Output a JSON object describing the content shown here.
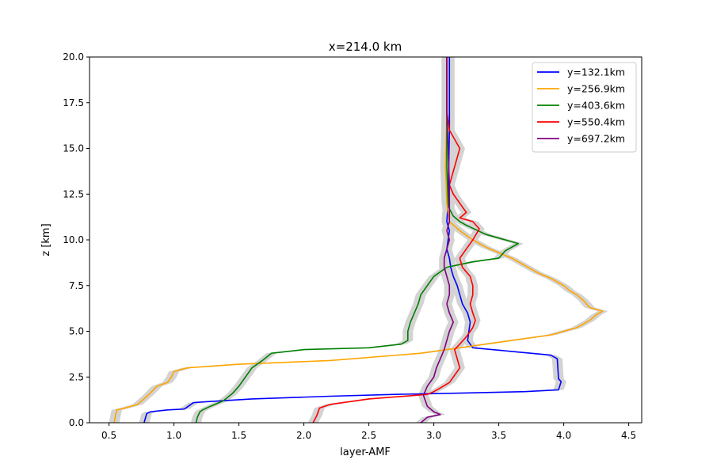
{
  "chart_data": {
    "type": "line",
    "title": "x=214.0 km",
    "xlabel": "layer-AMF",
    "ylabel": "z [km]",
    "xlim": [
      0.35,
      4.6
    ],
    "ylim": [
      0,
      20
    ],
    "xticks": [
      0.5,
      1.0,
      1.5,
      2.0,
      2.5,
      3.0,
      3.5,
      4.0,
      4.5
    ],
    "xtick_labels": [
      "0.5",
      "1.0",
      "1.5",
      "2.0",
      "2.5",
      "3.0",
      "3.5",
      "4.0",
      "4.5"
    ],
    "yticks": [
      0,
      2.5,
      5,
      7.5,
      10,
      12.5,
      15,
      17.5,
      20
    ],
    "ytick_labels": [
      "0.0",
      "2.5",
      "5.0",
      "7.5",
      "10.0",
      "12.5",
      "15.0",
      "17.5",
      "20.0"
    ],
    "grid": false,
    "legend_position": "top-right",
    "band_color": "#d3d3d3",
    "series": [
      {
        "name": "y=132.1km",
        "color": "#0000ff",
        "x": [
          0.77,
          0.79,
          0.82,
          0.95,
          1.08,
          1.12,
          1.15,
          1.25,
          1.6,
          2.2,
          2.7,
          3.2,
          3.7,
          3.96,
          3.98,
          3.96,
          3.95,
          3.9,
          3.6,
          3.3,
          3.26,
          3.27,
          3.28,
          3.26,
          3.22,
          3.2,
          3.18,
          3.15,
          3.13,
          3.12,
          3.1,
          3.11,
          3.12,
          3.1,
          3.11,
          3.12,
          3.12
        ],
        "y": [
          0,
          0.5,
          0.6,
          0.7,
          0.75,
          0.95,
          1.1,
          1.15,
          1.3,
          1.45,
          1.55,
          1.62,
          1.7,
          1.8,
          2.25,
          2.4,
          3.5,
          3.7,
          3.9,
          4.1,
          4.5,
          5.0,
          5.5,
          6.0,
          6.5,
          7.0,
          7.5,
          8.0,
          8.5,
          9.0,
          9.5,
          10.0,
          10.5,
          11.0,
          12.0,
          16.0,
          20.0
        ]
      },
      {
        "name": "y=256.9km",
        "color": "#ffa500",
        "x": [
          0.54,
          0.55,
          0.56,
          0.62,
          0.72,
          0.8,
          0.87,
          0.95,
          0.98,
          1.0,
          1.1,
          1.5,
          2.2,
          2.9,
          3.3,
          3.6,
          3.9,
          4.1,
          4.2,
          4.25,
          4.3,
          4.2,
          4.15,
          4.1,
          4.05,
          4.0,
          3.95,
          3.9,
          3.8,
          3.7,
          3.6,
          3.5,
          3.4,
          3.3,
          3.2,
          3.12,
          3.1,
          3.09,
          3.1,
          3.1
        ],
        "y": [
          0,
          0.4,
          0.7,
          0.8,
          1.0,
          1.5,
          2.0,
          2.2,
          2.5,
          2.8,
          3.0,
          3.2,
          3.4,
          3.8,
          4.2,
          4.5,
          4.8,
          5.2,
          5.6,
          5.9,
          6.1,
          6.3,
          6.7,
          7.0,
          7.2,
          7.5,
          7.7,
          7.9,
          8.2,
          8.6,
          9.0,
          9.3,
          9.6,
          10.0,
          10.5,
          11.0,
          12.0,
          14.0,
          17.0,
          20.0
        ]
      },
      {
        "name": "y=403.6km",
        "color": "#008000",
        "x": [
          1.17,
          1.18,
          1.2,
          1.22,
          1.28,
          1.38,
          1.45,
          1.5,
          1.55,
          1.6,
          1.68,
          1.75,
          2.0,
          2.5,
          2.75,
          2.8,
          2.8,
          2.82,
          2.85,
          2.88,
          2.9,
          2.95,
          3.0,
          3.1,
          3.3,
          3.5,
          3.55,
          3.65,
          3.4,
          3.25,
          3.2,
          3.15,
          3.12,
          3.11,
          3.1,
          3.1,
          3.1
        ],
        "y": [
          0,
          0.3,
          0.6,
          0.7,
          0.9,
          1.2,
          1.6,
          2.0,
          2.5,
          3.0,
          3.4,
          3.8,
          4.0,
          4.1,
          4.3,
          4.5,
          5.0,
          5.5,
          6.0,
          6.5,
          7.0,
          7.5,
          8.0,
          8.5,
          8.8,
          9.0,
          9.4,
          9.8,
          10.3,
          10.8,
          11.0,
          11.3,
          11.7,
          12.0,
          14.0,
          17.0,
          20.0
        ]
      },
      {
        "name": "y=550.4km",
        "color": "#ff0000",
        "x": [
          2.07,
          2.1,
          2.12,
          2.2,
          2.5,
          2.95,
          3.0,
          3.05,
          3.12,
          3.15,
          3.2,
          3.18,
          3.16,
          3.2,
          3.25,
          3.3,
          3.32,
          3.3,
          3.28,
          3.3,
          3.3,
          3.28,
          3.22,
          3.2,
          3.25,
          3.3,
          3.35,
          3.3,
          3.2,
          3.25,
          3.2,
          3.15,
          3.12,
          3.2,
          3.12,
          3.1,
          3.1,
          3.1
        ],
        "y": [
          0,
          0.4,
          0.8,
          1.0,
          1.3,
          1.55,
          1.7,
          1.9,
          2.2,
          2.5,
          3.0,
          3.5,
          4.0,
          4.3,
          4.7,
          5.2,
          5.6,
          6.0,
          6.5,
          7.0,
          7.5,
          8.0,
          8.5,
          9.0,
          9.5,
          10.0,
          10.6,
          11.0,
          11.2,
          11.5,
          12.0,
          12.5,
          13.0,
          15.0,
          16.0,
          17.0,
          19.0,
          20.0
        ]
      },
      {
        "name": "y=697.2km",
        "color": "#800080",
        "x": [
          2.9,
          2.95,
          3.05,
          3.0,
          2.95,
          2.92,
          2.95,
          3.0,
          3.02,
          3.05,
          3.08,
          3.1,
          3.12,
          3.15,
          3.12,
          3.1,
          3.12,
          3.12,
          3.1,
          3.08,
          3.08,
          3.1,
          3.12,
          3.1,
          3.12,
          3.12,
          3.1,
          3.1
        ],
        "y": [
          0,
          0.3,
          0.45,
          0.6,
          0.9,
          1.5,
          2.0,
          2.5,
          3.0,
          3.5,
          4.0,
          4.5,
          5.0,
          5.5,
          6.0,
          6.5,
          7.0,
          7.5,
          8.0,
          8.5,
          9.0,
          9.5,
          10.0,
          10.5,
          11.0,
          13.0,
          17.0,
          20.0
        ]
      }
    ]
  }
}
